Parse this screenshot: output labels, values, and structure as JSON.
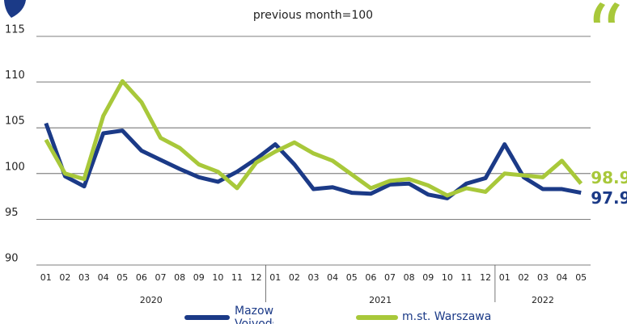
{
  "chart_data": {
    "type": "line",
    "subtitle": "previous month=100",
    "categories": [
      "01",
      "02",
      "03",
      "04",
      "05",
      "06",
      "07",
      "08",
      "09",
      "10",
      "11",
      "12",
      "01",
      "02",
      "03",
      "04",
      "05",
      "06",
      "07",
      "08",
      "09",
      "10",
      "11",
      "12",
      "01",
      "02",
      "03",
      "04",
      "05"
    ],
    "x_groups": [
      "2020",
      "2021",
      "2022"
    ],
    "series": [
      {
        "name": "Mazowieckie Voivodship",
        "color": "#1b3a87",
        "values": [
          105.5,
          99.7,
          98.6,
          104.4,
          104.7,
          102.5,
          101.5,
          100.5,
          99.6,
          99.1,
          100.2,
          101.6,
          103.2,
          101.0,
          98.3,
          98.5,
          97.9,
          97.8,
          98.8,
          98.9,
          97.7,
          97.3,
          98.9,
          99.5,
          103.2,
          99.6,
          98.3,
          98.3,
          97.9
        ]
      },
      {
        "name": "m.st. Warszawa",
        "color": "#a8c83a",
        "values": [
          103.7,
          100.0,
          99.4,
          106.3,
          110.1,
          107.8,
          103.9,
          102.8,
          101.0,
          100.2,
          98.4,
          101.2,
          102.4,
          103.4,
          102.2,
          101.4,
          99.9,
          98.4,
          99.2,
          99.4,
          98.7,
          97.6,
          98.4,
          98.0,
          100.0,
          99.8,
          99.6,
          101.4,
          98.9
        ]
      }
    ],
    "ylim": [
      90,
      115
    ],
    "yticks": [
      90,
      95,
      100,
      105,
      110,
      115
    ],
    "grid": true
  }
}
